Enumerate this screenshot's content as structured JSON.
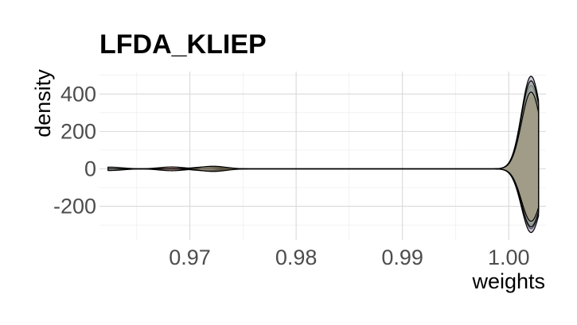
{
  "chart_data": {
    "type": "area",
    "title": "LFDA_KLIEP",
    "xlabel": "weights",
    "ylabel": "density",
    "xlim": [
      0.9615,
      1.0035
    ],
    "ylim": [
      -380,
      520
    ],
    "x_ticks": [
      0.97,
      0.98,
      0.99,
      1.0
    ],
    "x_tick_labels": [
      "0.97",
      "0.98",
      "0.99",
      "1.00"
    ],
    "y_ticks": [
      -200,
      0,
      200,
      400
    ],
    "y_tick_labels": [
      "-200",
      "0",
      "200",
      "400"
    ],
    "grid": true,
    "legend": "none",
    "series": [
      {
        "color": "#c27c72",
        "left_peaks": [
          [
            0.9683,
            10
          ]
        ],
        "right_peak": 380,
        "lower_peak": -300
      },
      {
        "color": "#8a8a8a",
        "left_peaks": [
          [
            0.972,
            12
          ]
        ],
        "right_peak": 445,
        "lower_peak": -320
      },
      {
        "color": "#9b8fb5",
        "left_peaks": [
          [
            0.9715,
            10
          ]
        ],
        "right_peak": 495,
        "lower_peak": -340
      },
      {
        "color": "#8fa68c",
        "left_peaks": [
          [
            0.9625,
            9
          ]
        ],
        "right_peak": 470,
        "lower_peak": -310
      },
      {
        "color": "#a69a7a",
        "left_peaks": [
          [
            0.9722,
            14
          ]
        ],
        "right_peak": 410,
        "lower_peak": -280
      }
    ]
  }
}
